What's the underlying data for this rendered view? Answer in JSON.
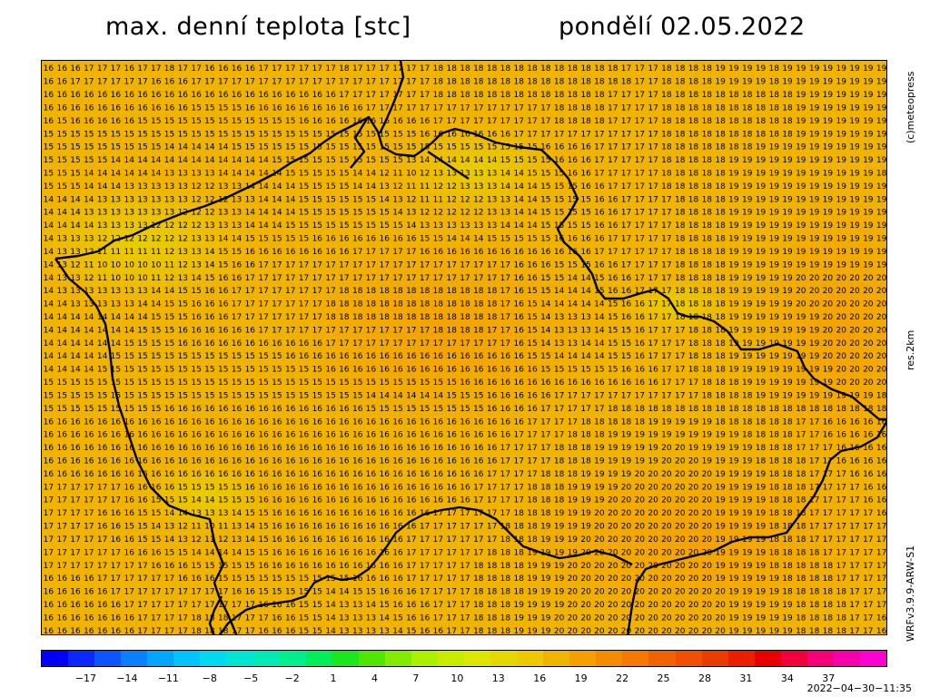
{
  "header": {
    "title": "max. denní teplota [stc]",
    "date": "pondělí 02.05.2022"
  },
  "side_labels": {
    "copyright": "(c)meteopress",
    "resolution": "res.2km",
    "model": "WRFv3.9.9-ARW-S1"
  },
  "legend": {
    "ticks": [
      "−17",
      "−14",
      "−11",
      "−8",
      "−5",
      "−2",
      "1",
      "4",
      "7",
      "10",
      "13",
      "16",
      "19",
      "22",
      "25",
      "28",
      "31",
      "34",
      "37"
    ],
    "colors": [
      "#0000ff",
      "#0a28ff",
      "#0d55ff",
      "#0a80ff",
      "#00a6ff",
      "#00c3ff",
      "#00d9f0",
      "#00e6d2",
      "#00ebb4",
      "#00ee8c",
      "#00ee5a",
      "#1ee61e",
      "#50e600",
      "#82eb00",
      "#aaf000",
      "#c8eb00",
      "#dce600",
      "#e6d700",
      "#eec800",
      "#f0b400",
      "#f5a000",
      "#f58c00",
      "#f57800",
      "#f06400",
      "#f05000",
      "#eb3c00",
      "#eb1e00",
      "#e60000",
      "#f0003c",
      "#f50078",
      "#f500aa",
      "#ff00d2"
    ]
  },
  "timestamp": "2022−04−30−11:35",
  "grid": [
    "16 16 16 17 17 17 16 17 17 18 17 17 16 16 16 16 17 17 17 17 17 17 18 17 17 17 17 17 17 18 18 18 18 18 18 18 18 18 18 18 18 18 18 17 17 17 18 18 18 18 19 19 19 19 18 19 19 19 19 19 19 19 19",
    "16 16 17 17 17 17 17 17 16 16 16 17 17 17 17 17 17 17 17 17 17 17 17 17 17 17 17 17 17 18 18 18 18 18 18 18 18 18 18 18 18 18 18 18 17 17 18 18 18 18 19 19 19 19 18 19 19 19 19 19 19 19 19",
    "16 16 16 16 16 16 16 16 16 16 16 16 16 16 16 16 16 16 16 16 16 16 17 17 17 17 17 17 17 18 18 18 18 18 18 18 18 18 18 18 18 18 17 17 17 17 18 18 18 18 18 18 18 18 18 18 19 19 19 19 19 19 19",
    "16 16 16 16 16 16 16 16 16 16 16 15 15 15 15 16 16 16 16 16 16 16 16 16 17 17 17 17 17 17 17 17 17 17 17 17 17 17 18 18 18 18 17 17 17 17 18 18 18 18 18 18 18 18 18 18 19 19 19 19 19 19 19",
    "16 15 16 16 16 16 16 15 15 15 15 15 15 15 15 15 15 15 15 16 16 16 16 16 16 16 16 16 16 17 17 17 17 17 17 17 17 17 18 18 18 18 17 17 17 17 18 18 18 18 18 18 18 18 18 18 19 19 19 19 19 19 19",
    "15 15 15 15 15 15 15 15 15 15 15 15 15 15 15 15 15 15 15 15 15 15 15 15 15 15 15 15 16 16 16 16 16 16 16 17 17 17 17 17 17 17 17 17 17 17 18 18 18 18 18 18 18 18 18 18 19 19 19 19 19 19 19",
    "15 15 15 15 15 15 15 15 15 14 14 14 14 14 15 15 15 15 15 15 15 15 15 15 15 15 15 15 15 15 15 15 15 15 15 15 15 16 16 16 16 17 17 17 17 17 18 18 18 18 18 18 18 19 19 19 19 19 19 19 19 19 19",
    "15 15 15 15 15 14 14 14 14 14 14 14 14 14 14 14 14 15 15 15 15 15 15 15 15 15 15 13 14 14 14 14 14 14 15 15 15 15 16 16 16 17 17 17 17 17 18 18 18 18 18 19 19 19 19 19 19 19 19 19 19 19 19",
    "15 15 15 14 14 14 14 14 14 13 13 13 13 14 14 14 14 14 15 15 15 15 15 14 14 12 11 10 12 13 13 13 13 13 14 14 15 15 15 16 16 17 17 17 17 17 18 18 18 18 18 19 19 19 19 19 19 19 19 19 19 19 18",
    "15 15 15 14 14 14 13 13 13 13 13 12 12 13 13 14 14 14 14 15 15 15 15 14 14 13 12 11 11 12 12 13 13 13 14 14 14 15 15 15 16 16 17 17 17 17 18 18 18 18 18 19 19 19 19 19 19 19 19 19 19 19 19",
    "14 14 14 14 13 13 13 13 13 13 13 12 12 12 13 13 14 14 14 15 15 15 15 15 15 14 13 12 11 11 12 12 12 13 13 14 14 15 15 15 15 16 16 17 17 17 17 18 18 18 18 19 19 19 19 19 19 19 19 19 19 19 19",
    "14 14 14 13 13 13 13 13 13 13 12 12 12 13 13 14 14 14 14 15 15 15 15 15 15 15 14 13 12 12 12 12 12 13 13 14 14 15 15 15 15 16 16 17 17 17 17 18 18 18 18 19 19 19 19 19 19 19 19 19 19 19 19",
    "14 14 14 14 13 13 13 13 12 12 12 12 13 13 13 14 14 14 15 15 15 15 15 15 15 15 15 14 13 13 13 13 13 13 14 14 14 15 15 15 15 16 16 17 17 17 17 18 18 18 18 19 19 19 19 19 19 19 19 19 19 19 19",
    "14 13 13 13 12 12 12 12 12 12 12 13 13 14 14 15 15 15 15 15 16 16 16 16 16 16 16 16 15 15 14 14 14 15 15 15 15 15 16 16 16 16 17 17 17 17 17 18 18 18 18 19 19 19 19 19 19 19 19 19 19 19 19",
    "14 13 13 12 11 11 11 11 11 12 13 13 14 15 15 16 16 16 16 16 16 16 16 17 17 17 17 17 16 16 16 16 16 16 16 16 16 16 16 16 16 17 17 17 17 17 17 18 18 18 18 19 19 19 19 19 19 19 19 19 19 19 19",
    "14 13 12 11 10 10 10 10 10 11 12 13 14 15 16 16 17 17 17 17 17 17 17 17 17 17 17 17 17 17 17 17 17 17 17 16 16 16 15 15 15 16 16 17 17 17 17 18 18 18 18 19 19 19 19 19 19 19 19 19 19 19 19",
    "14 13 13 12 11 10 10 10 11 12 13 14 15 16 16 17 17 17 17 17 17 17 17 17 17 17 17 17 17 17 17 17 17 17 17 16 16 15 15 14 14 15 16 16 17 17 17 18 18 18 18 19 19 19 19 19 20 20 20 20 20 20 20",
    "14 13 13 13 13 13 13 13 14 14 15 15 16 16 17 17 17 17 17 17 17 17 18 18 18 18 18 18 18 18 18 18 18 18 17 16 15 15 14 14 14 15 16 16 17 17 17 18 18 18 18 19 19 19 19 19 20 20 20 20 20 20 20",
    "14 14 13 13 13 13 13 14 14 15 15 16 16 16 17 17 17 17 17 17 17 18 18 18 18 18 18 18 18 18 18 18 18 18 17 16 15 14 14 14 14 14 15 16 16 17 17 18 18 18 18 19 19 19 19 19 20 20 20 20 20 20 20",
    "14 14 14 14 14 14 14 14 15 15 15 16 16 16 17 17 17 17 17 17 17 18 18 18 18 18 18 18 18 18 18 18 18 18 17 16 15 14 13 13 13 14 15 16 16 17 17 18 18 18 18 19 19 19 19 19 19 19 20 20 20 20 20",
    "14 14 14 14 14 14 14 15 15 15 16 16 16 16 16 16 17 17 17 17 17 17 17 17 17 17 17 17 17 18 18 18 18 17 17 16 15 14 13 13 13 14 15 15 16 17 17 17 18 18 18 19 19 19 19 19 19 19 20 20 20 20 20",
    "14 14 14 14 14 14 15 15 15 15 16 16 16 16 16 16 16 16 16 16 16 17 17 17 17 17 17 17 17 17 17 17 17 17 17 16 15 14 13 13 14 14 15 15 16 17 17 17 18 18 18 19 19 19 19 19 19 19 20 20 20 20 20",
    "14 14 14 14 14 15 15 15 15 15 15 15 15 15 15 15 15 15 16 16 16 16 16 16 16 16 16 16 16 16 16 16 16 16 16 16 15 15 14 14 14 14 15 15 16 17 17 17 18 18 18 19 19 19 19 19 19 19 20 20 20 20 20",
    "14 14 14 14 15 15 15 15 15 15 15 15 15 15 15 15 15 15 15 15 15 16 16 16 16 16 16 16 16 16 16 16 16 16 16 16 16 15 15 15 15 15 15 16 16 16 17 17 18 18 18 19 19 19 19 19 19 19 19 20 20 20 20",
    "15 15 15 15 15 15 15 15 15 15 15 15 15 15 15 15 15 15 15 15 15 15 15 15 15 15 15 15 15 15 15 16 16 16 16 16 16 16 16 16 16 16 16 16 16 16 17 17 17 18 18 18 19 19 19 19 19 19 19 20 20 20 20",
    "15 15 15 15 15 15 15 15 15 15 15 15 15 15 15 15 15 15 15 15 15 15 15 15 14 14 14 14 14 14 15 15 15 16 16 16 16 16 17 17 17 17 17 17 17 17 17 17 17 18 18 18 18 19 19 19 19 19 19 19 19 19 18",
    "15 15 15 15 15 15 15 15 15 16 16 16 16 16 16 16 16 16 16 16 16 16 16 16 15 15 15 15 15 15 15 15 15 16 16 16 16 17 17 17 17 17 18 18 18 18 18 18 18 18 18 18 18 18 18 18 18 18 18 18 18 18 18",
    "16 16 16 16 16 16 16 16 16 16 16 16 16 16 16 16 16 16 16 16 16 16 16 16 16 16 16 16 16 16 16 16 16 16 16 16 17 17 17 17 18 18 18 18 18 19 19 19 19 19 18 18 18 18 18 18 17 17 16 16 16 16 16",
    "16 16 16 16 16 16 16 16 16 16 16 16 16 16 16 16 16 16 16 16 16 16 16 16 16 16 16 16 16 16 16 16 16 16 16 17 17 17 17 18 18 18 19 19 19 19 19 19 19 19 19 19 18 18 18 18 17 17 16 16 16 16 16",
    "16 16 16 16 16 16 16 16 16 16 16 16 16 16 16 16 16 16 16 16 16 16 16 16 16 16 16 16 16 16 16 16 16 16 17 17 17 17 18 18 18 19 19 19 19 19 20 20 19 19 19 19 19 18 18 18 17 17 17 16 16 16 16",
    "16 16 16 16 16 16 16 16 16 16 16 16 16 16 16 16 16 16 16 16 16 16 16 16 16 16 16 16 16 16 16 16 16 16 17 17 17 17 18 18 18 19 19 19 19 19 20 20 20 19 19 19 19 18 18 18 18 17 17 16 16 16 16",
    "16 16 16 16 16 16 16 16 16 16 16 16 16 16 16 16 16 16 16 16 16 16 16 16 16 16 16 16 16 16 16 16 16 17 17 17 17 18 18 18 19 19 19 19 20 20 20 20 20 20 19 19 19 19 18 18 18 17 17 17 16 16 16",
    "17 17 17 17 17 17 16 16 16 16 15 15 15 15 15 16 16 16 16 16 16 16 16 16 16 16 16 16 16 16 16 16 17 17 17 17 18 18 18 19 19 19 19 20 20 20 20 20 20 20 19 19 19 19 18 18 18 17 17 17 17 16 16",
    "17 17 17 17 17 17 16 16 15 15 15 14 14 15 15 15 16 16 16 16 16 16 16 16 16 16 16 16 16 16 16 16 17 17 17 17 18 18 18 19 19 19 20 20 20 20 20 20 20 20 19 19 19 19 18 18 18 17 17 17 17 16 16",
    "17 17 17 17 16 16 16 15 15 14 14 13 13 13 14 15 15 16 16 16 16 16 16 16 16 16 16 16 16 17 17 17 17 17 17 18 18 18 19 19 19 20 20 20 20 20 20 20 20 20 19 19 19 19 18 18 18 17 17 17 17 17 16",
    "17 17 17 17 16 16 15 15 14 13 12 11 10 11 13 14 15 16 16 16 16 16 16 16 16 16 16 16 17 17 17 17 17 17 18 18 18 19 19 19 19 20 20 20 20 20 20 20 20 20 19 19 19 19 18 18 18 17 17 17 17 17 17",
    "17 17 17 17 17 16 16 15 15 14 13 12 11 12 13 14 15 16 16 16 16 16 16 16 16 16 16 17 17 17 17 17 17 17 18 18 18 19 19 19 20 20 20 20 20 20 20 20 20 20 19 19 19 19 18 18 18 17 17 17 17 17 17",
    "17 17 17 17 17 17 16 16 16 15 15 14 14 14 14 15 15 16 16 16 16 16 16 16 16 16 16 17 17 17 17 17 17 18 18 18 19 19 19 19 20 20 20 20 20 20 20 20 20 20 19 19 19 19 18 18 18 18 17 17 17 17 17",
    "17 17 17 17 17 17 17 17 16 16 16 15 15 15 15 15 16 16 16 16 16 16 16 16 16 16 16 17 17 17 17 17 18 18 18 18 19 19 19 20 20 20 20 20 20 20 20 20 20 20 19 19 19 19 18 18 18 18 18 17 17 17 17",
    "16 16 16 16 17 17 17 17 17 17 16 16 16 15 15 15 15 15 15 15 15 15 15 16 16 16 16 17 17 17 17 17 18 18 18 18 19 19 19 20 20 20 20 20 20 20 20 20 20 20 19 19 19 19 19 18 18 18 18 17 17 17 17",
    "16 16 16 16 16 17 17 17 17 17 17 17 17 17 16 16 15 15 15 15 15 14 14 15 15 16 16 16 17 17 17 17 18 18 18 18 19 19 19 20 20 20 20 20 20 20 20 20 20 20 20 19 19 19 19 18 18 18 18 18 17 17 17",
    "16 16 16 16 16 16 17 17 17 17 17 17 17 17 17 17 16 16 16 15 15 14 13 13 14 15 16 16 16 17 17 17 18 18 18 19 19 19 19 20 20 20 20 20 20 20 20 20 20 20 20 19 19 19 19 19 18 18 18 18 17 17 17",
    "16 16 16 16 16 16 16 17 17 17 17 18 18 18 17 17 17 16 16 15 15 14 13 13 13 14 15 16 16 17 17 17 18 18 18 19 19 19 20 20 20 20 20 20 20 20 20 20 20 20 20 19 19 19 19 19 18 18 18 18 17 17 16",
    "16 16 16 16 16 16 16 17 17 17 17 18 18 18 17 17 16 16 16 15 15 14 13 13 13 13 14 15 16 16 17 17 18 18 18 19 19 19 20 20 20 20 20 20 20 20 20 20 20 20 20 19 19 19 19 19 18 18 18 18 17 17 16"
  ]
}
